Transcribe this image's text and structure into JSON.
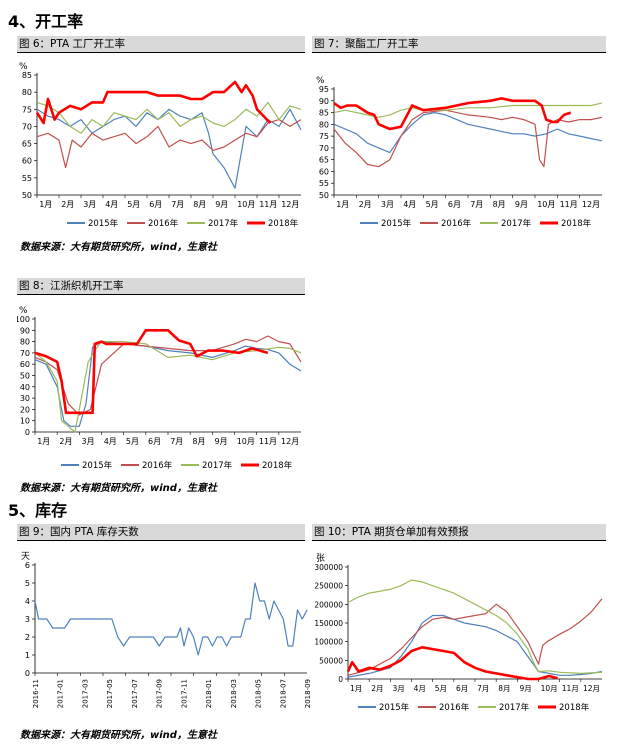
{
  "sections": {
    "s4": "4、开工率",
    "s5": "5、库存"
  },
  "sources": {
    "s1": "数据来源：大有期货研究所，wind，生意社",
    "s2": "数据来源：大有期货研究所，wind，生意社",
    "s3": "数据来源：大有期货研究所，wind，生意社"
  },
  "colors": {
    "s2015": "#4f81bd",
    "s2016": "#c0504d",
    "s2017": "#9bbb59",
    "s2018": "#ff0000"
  },
  "chart_data": [
    {
      "id": "c6",
      "panel_title": "图 6：PTA 工厂开工率",
      "type": "line",
      "unit": "%",
      "ylim": [
        50,
        85
      ],
      "yticks": [
        50,
        55,
        60,
        65,
        70,
        75,
        80,
        85
      ],
      "xlim": [
        0,
        12
      ],
      "categories": [
        "1月",
        "2月",
        "3月",
        "4月",
        "5月",
        "6月",
        "7月",
        "8月",
        "9月",
        "10月",
        "11月",
        "12月"
      ],
      "legend": [
        "2015年",
        "2016年",
        "2017年",
        "2018年"
      ],
      "series": [
        {
          "name": "2015年",
          "x": [
            0,
            0.5,
            1,
            1.5,
            2,
            2.5,
            3,
            3.5,
            4,
            4.5,
            5,
            5.5,
            6,
            6.5,
            7,
            7.5,
            7.8,
            8,
            8.5,
            9,
            9.5,
            10,
            10.5,
            11,
            11.5,
            12
          ],
          "y": [
            75,
            73,
            72,
            70,
            72,
            68,
            70,
            72,
            73,
            70,
            74,
            72,
            75,
            73,
            72,
            74,
            68,
            62,
            58,
            52,
            70,
            67,
            72,
            70,
            75,
            69
          ]
        },
        {
          "name": "2016年",
          "x": [
            0,
            0.5,
            1,
            1.3,
            1.6,
            2,
            2.5,
            3,
            3.5,
            4,
            4.5,
            5,
            5.5,
            6,
            6.5,
            7,
            7.5,
            8,
            8.5,
            9,
            9.5,
            10,
            10.5,
            11,
            11.5,
            12
          ],
          "y": [
            67,
            68,
            66,
            58,
            66,
            64,
            68,
            66,
            67,
            68,
            65,
            67,
            70,
            64,
            66,
            65,
            66,
            63,
            64,
            66,
            68,
            67,
            71,
            72,
            70,
            72
          ]
        },
        {
          "name": "2017年",
          "x": [
            0,
            0.5,
            1,
            1.5,
            2,
            2.5,
            3,
            3.5,
            4,
            4.5,
            5,
            5.5,
            6,
            6.5,
            7,
            7.5,
            8,
            8.5,
            9,
            9.5,
            10,
            10.5,
            11,
            11.5,
            12
          ],
          "y": [
            77,
            76,
            74,
            70,
            68,
            72,
            70,
            74,
            73,
            72,
            75,
            72,
            74,
            70,
            72,
            73,
            71,
            70,
            72,
            75,
            73,
            77,
            72,
            76,
            75
          ]
        },
        {
          "name": "2018年",
          "x": [
            0,
            0.3,
            0.5,
            0.8,
            1,
            1.5,
            2,
            2.5,
            3,
            3.2,
            3.5,
            4,
            5,
            5.5,
            6,
            6.5,
            7,
            7.5,
            8,
            8.5,
            9,
            9.3,
            9.5,
            9.8,
            10,
            10.3,
            10.6
          ],
          "y": [
            74,
            71,
            78,
            72,
            74,
            76,
            75,
            77,
            77,
            80,
            80,
            80,
            80,
            79,
            79,
            79,
            78,
            78,
            80,
            80,
            83,
            80,
            82,
            79,
            75,
            73,
            71
          ]
        }
      ]
    },
    {
      "id": "c7",
      "panel_title": "图 7：聚酯工厂开工率",
      "type": "line",
      "unit": "%",
      "ylim": [
        50,
        95
      ],
      "yticks": [
        50,
        55,
        60,
        65,
        70,
        75,
        80,
        85,
        90,
        95
      ],
      "xlim": [
        0,
        12
      ],
      "categories": [
        "1月",
        "2月",
        "3月",
        "4月",
        "5月",
        "6月",
        "7月",
        "8月",
        "9月",
        "10月",
        "11月",
        "12月"
      ],
      "legend": [
        "2015年",
        "2016年",
        "2017年",
        "2018年"
      ],
      "series": [
        {
          "name": "2015年",
          "x": [
            0,
            0.5,
            1,
            1.5,
            2,
            2.5,
            3,
            3.5,
            4,
            4.5,
            5,
            5.5,
            6,
            6.5,
            7,
            7.5,
            8,
            8.5,
            9,
            9.5,
            10,
            10.5,
            11,
            11.5,
            12
          ],
          "y": [
            80,
            78,
            76,
            72,
            70,
            68,
            75,
            80,
            84,
            85,
            84,
            82,
            80,
            79,
            78,
            77,
            76,
            76,
            75,
            76,
            78,
            76,
            75,
            74,
            73
          ]
        },
        {
          "name": "2016年",
          "x": [
            0,
            0.5,
            1,
            1.5,
            2,
            2.5,
            3,
            3.5,
            4,
            5,
            6,
            7,
            7.5,
            8,
            8.5,
            9,
            9.2,
            9.4,
            9.6,
            10,
            10.5,
            11,
            11.5,
            12
          ],
          "y": [
            78,
            72,
            68,
            63,
            62,
            65,
            75,
            82,
            85,
            86,
            84,
            83,
            82,
            83,
            82,
            80,
            65,
            62,
            80,
            82,
            81,
            82,
            82,
            83
          ]
        },
        {
          "name": "2017年",
          "x": [
            0,
            0.5,
            1,
            1.5,
            2,
            2.5,
            3,
            3.5,
            4,
            5,
            6,
            7,
            8,
            9,
            9.5,
            10,
            10.5,
            11,
            11.5,
            12
          ],
          "y": [
            85,
            86,
            85,
            84,
            83,
            84,
            86,
            87,
            86,
            86,
            87,
            87,
            88,
            88,
            88,
            88,
            88,
            88,
            88,
            89
          ]
        },
        {
          "name": "2018年",
          "x": [
            0,
            0.3,
            0.6,
            1,
            1.5,
            1.8,
            2,
            2.5,
            3,
            3.5,
            4,
            5,
            6,
            7,
            7.5,
            8,
            8.5,
            9,
            9.3,
            9.5,
            9.8,
            10,
            10.3,
            10.6
          ],
          "y": [
            89,
            87,
            88,
            88,
            85,
            84,
            80,
            78,
            79,
            88,
            86,
            87,
            89,
            90,
            91,
            90,
            90,
            90,
            88,
            82,
            81,
            81,
            84,
            85
          ]
        }
      ]
    },
    {
      "id": "c8",
      "panel_title": "图 8：江浙织机开工率",
      "type": "line",
      "unit": "%",
      "ylim": [
        0,
        100
      ],
      "yticks": [
        0,
        10,
        20,
        30,
        40,
        50,
        60,
        70,
        80,
        90,
        100
      ],
      "xlim": [
        0,
        12
      ],
      "categories": [
        "1月",
        "2月",
        "3月",
        "4月",
        "5月",
        "6月",
        "7月",
        "8月",
        "9月",
        "10月",
        "11月",
        "12月"
      ],
      "legend": [
        "2015年",
        "2016年",
        "2017年",
        "2018年"
      ],
      "series": [
        {
          "name": "2015年",
          "x": [
            0,
            0.5,
            1,
            1.3,
            1.6,
            2,
            2.3,
            2.6,
            3,
            4,
            5,
            6,
            7,
            8,
            9,
            9.5,
            10,
            10.5,
            11,
            11.5,
            12
          ],
          "y": [
            64,
            60,
            40,
            10,
            5,
            5,
            25,
            75,
            80,
            78,
            76,
            72,
            70,
            66,
            72,
            76,
            74,
            73,
            70,
            60,
            54
          ]
        },
        {
          "name": "2016年",
          "x": [
            0,
            0.5,
            1,
            1.5,
            2,
            2.5,
            3,
            4,
            5,
            6,
            7,
            8,
            9,
            9.5,
            10,
            10.5,
            11,
            11.5,
            12
          ],
          "y": [
            66,
            62,
            55,
            25,
            15,
            20,
            60,
            78,
            76,
            74,
            72,
            72,
            78,
            82,
            80,
            85,
            80,
            78,
            62
          ]
        },
        {
          "name": "2017年",
          "x": [
            0,
            0.5,
            1,
            1.2,
            1.5,
            1.8,
            2,
            2.4,
            2.8,
            3,
            4,
            5,
            6,
            7,
            8,
            9,
            10,
            11,
            11.5,
            12
          ],
          "y": [
            70,
            62,
            45,
            10,
            5,
            0,
            20,
            62,
            75,
            80,
            80,
            78,
            66,
            68,
            64,
            70,
            72,
            75,
            74,
            70
          ]
        },
        {
          "name": "2018年",
          "x": [
            0,
            0.5,
            1,
            1.2,
            1.4,
            2,
            2.6,
            2.7,
            3,
            3.2,
            3.5,
            4.6,
            5,
            5.3,
            5.6,
            6,
            6.5,
            7,
            7.3,
            7.8,
            8.5,
            9.2,
            9.8,
            10.5
          ],
          "y": [
            70,
            67,
            62,
            45,
            17,
            17,
            17,
            78,
            80,
            78,
            78,
            78,
            90,
            90,
            90,
            90,
            81,
            78,
            67,
            72,
            72,
            70,
            74,
            70
          ]
        }
      ]
    },
    {
      "id": "c9",
      "panel_title": "图 9：国内 PTA 库存天数",
      "type": "line",
      "unit": "天",
      "ylim": [
        0,
        6
      ],
      "yticks": [
        0,
        1,
        2,
        3,
        4,
        5,
        6
      ],
      "xlim": [
        0,
        23
      ],
      "categories": [
        "2016-11",
        "2017-01",
        "2017-03",
        "2017-05",
        "2017-07",
        "2017-09",
        "2017-11",
        "2018-01",
        "2018-03",
        "2018-05",
        "2018-07",
        "2018-09"
      ],
      "series": [
        {
          "name": "库存天数",
          "x": [
            0,
            0.3,
            0.6,
            1,
            1.5,
            2,
            2.5,
            3,
            3.5,
            4,
            5,
            6,
            6.5,
            7,
            7.5,
            8,
            8.5,
            9,
            9.3,
            9.6,
            10,
            10.5,
            11,
            11.5,
            12,
            12.3,
            12.6,
            13,
            13.4,
            13.8,
            14.2,
            14.6,
            15,
            15.4,
            15.8,
            16.2,
            16.6,
            17,
            17.4,
            17.8,
            18.2,
            18.6,
            19,
            19.4,
            19.8,
            20.2,
            20.6,
            21,
            21.4,
            21.8,
            22.2,
            22.6,
            23
          ],
          "y": [
            4,
            3,
            3,
            3,
            2.5,
            2.5,
            2.5,
            3,
            3,
            3,
            3,
            3,
            3,
            2,
            1.5,
            2,
            2,
            2,
            2,
            2,
            2,
            1.5,
            2,
            2,
            2,
            2.5,
            1.5,
            2.5,
            2,
            1,
            2,
            2,
            1.5,
            2,
            2,
            1.5,
            2,
            2,
            2,
            3,
            3,
            5,
            4,
            4,
            3,
            4,
            3.5,
            3,
            1.5,
            1.5,
            3.5,
            3,
            3.5
          ]
        }
      ]
    },
    {
      "id": "c10",
      "panel_title": "图 10：PTA 期货仓单加有效预报",
      "type": "line",
      "unit": "张",
      "ylim": [
        0,
        300000
      ],
      "yticks": [
        0,
        50000,
        100000,
        150000,
        200000,
        250000,
        300000
      ],
      "xlim": [
        0,
        12
      ],
      "categories": [
        "1月",
        "2月",
        "3月",
        "4月",
        "5月",
        "6月",
        "7月",
        "8月",
        "9月",
        "10月",
        "11月",
        "12月"
      ],
      "legend": [
        "2015年",
        "2016年",
        "2017年",
        "2018年"
      ],
      "series": [
        {
          "name": "2015年",
          "x": [
            0,
            1,
            2,
            2.5,
            3,
            3.5,
            4,
            4.5,
            5,
            5.5,
            6,
            6.5,
            7,
            7.5,
            8,
            8.5,
            9,
            9.5,
            10,
            10.5,
            11,
            11.5,
            12
          ],
          "y": [
            5000,
            15000,
            30000,
            60000,
            100000,
            150000,
            170000,
            170000,
            160000,
            150000,
            145000,
            140000,
            130000,
            115000,
            100000,
            60000,
            20000,
            15000,
            10000,
            10000,
            12000,
            15000,
            20000
          ]
        },
        {
          "name": "2016年",
          "x": [
            0,
            1,
            1.5,
            2,
            2.5,
            3,
            3.5,
            4,
            4.5,
            5,
            5.5,
            6,
            6.5,
            7,
            7.5,
            8,
            8.5,
            9,
            9.2,
            9.4,
            10,
            10.5,
            11,
            11.5,
            12
          ],
          "y": [
            10000,
            25000,
            40000,
            55000,
            80000,
            110000,
            140000,
            160000,
            165000,
            160000,
            165000,
            170000,
            175000,
            200000,
            180000,
            140000,
            100000,
            40000,
            90000,
            100000,
            120000,
            135000,
            155000,
            180000,
            215000
          ]
        },
        {
          "name": "2017年",
          "x": [
            0,
            0.5,
            1,
            2,
            2.5,
            3,
            3.5,
            4,
            4.5,
            5,
            5.5,
            6,
            6.5,
            7,
            7.5,
            8,
            8.5,
            8.8,
            9,
            9.5,
            10,
            11,
            12
          ],
          "y": [
            205000,
            220000,
            230000,
            240000,
            250000,
            265000,
            260000,
            250000,
            240000,
            230000,
            215000,
            200000,
            185000,
            170000,
            150000,
            120000,
            80000,
            40000,
            20000,
            22000,
            18000,
            15000,
            18000
          ]
        },
        {
          "name": "2018年",
          "x": [
            0,
            0.2,
            0.5,
            1,
            1.5,
            2,
            2.5,
            3,
            3.5,
            4,
            4.5,
            5,
            5.5,
            6,
            6.5,
            7,
            7.5,
            8,
            8.5,
            9,
            9.5,
            9.9
          ],
          "y": [
            20000,
            45000,
            20000,
            30000,
            25000,
            35000,
            50000,
            75000,
            85000,
            80000,
            75000,
            70000,
            45000,
            30000,
            20000,
            15000,
            10000,
            5000,
            0,
            0,
            8000,
            2000
          ]
        }
      ]
    }
  ]
}
